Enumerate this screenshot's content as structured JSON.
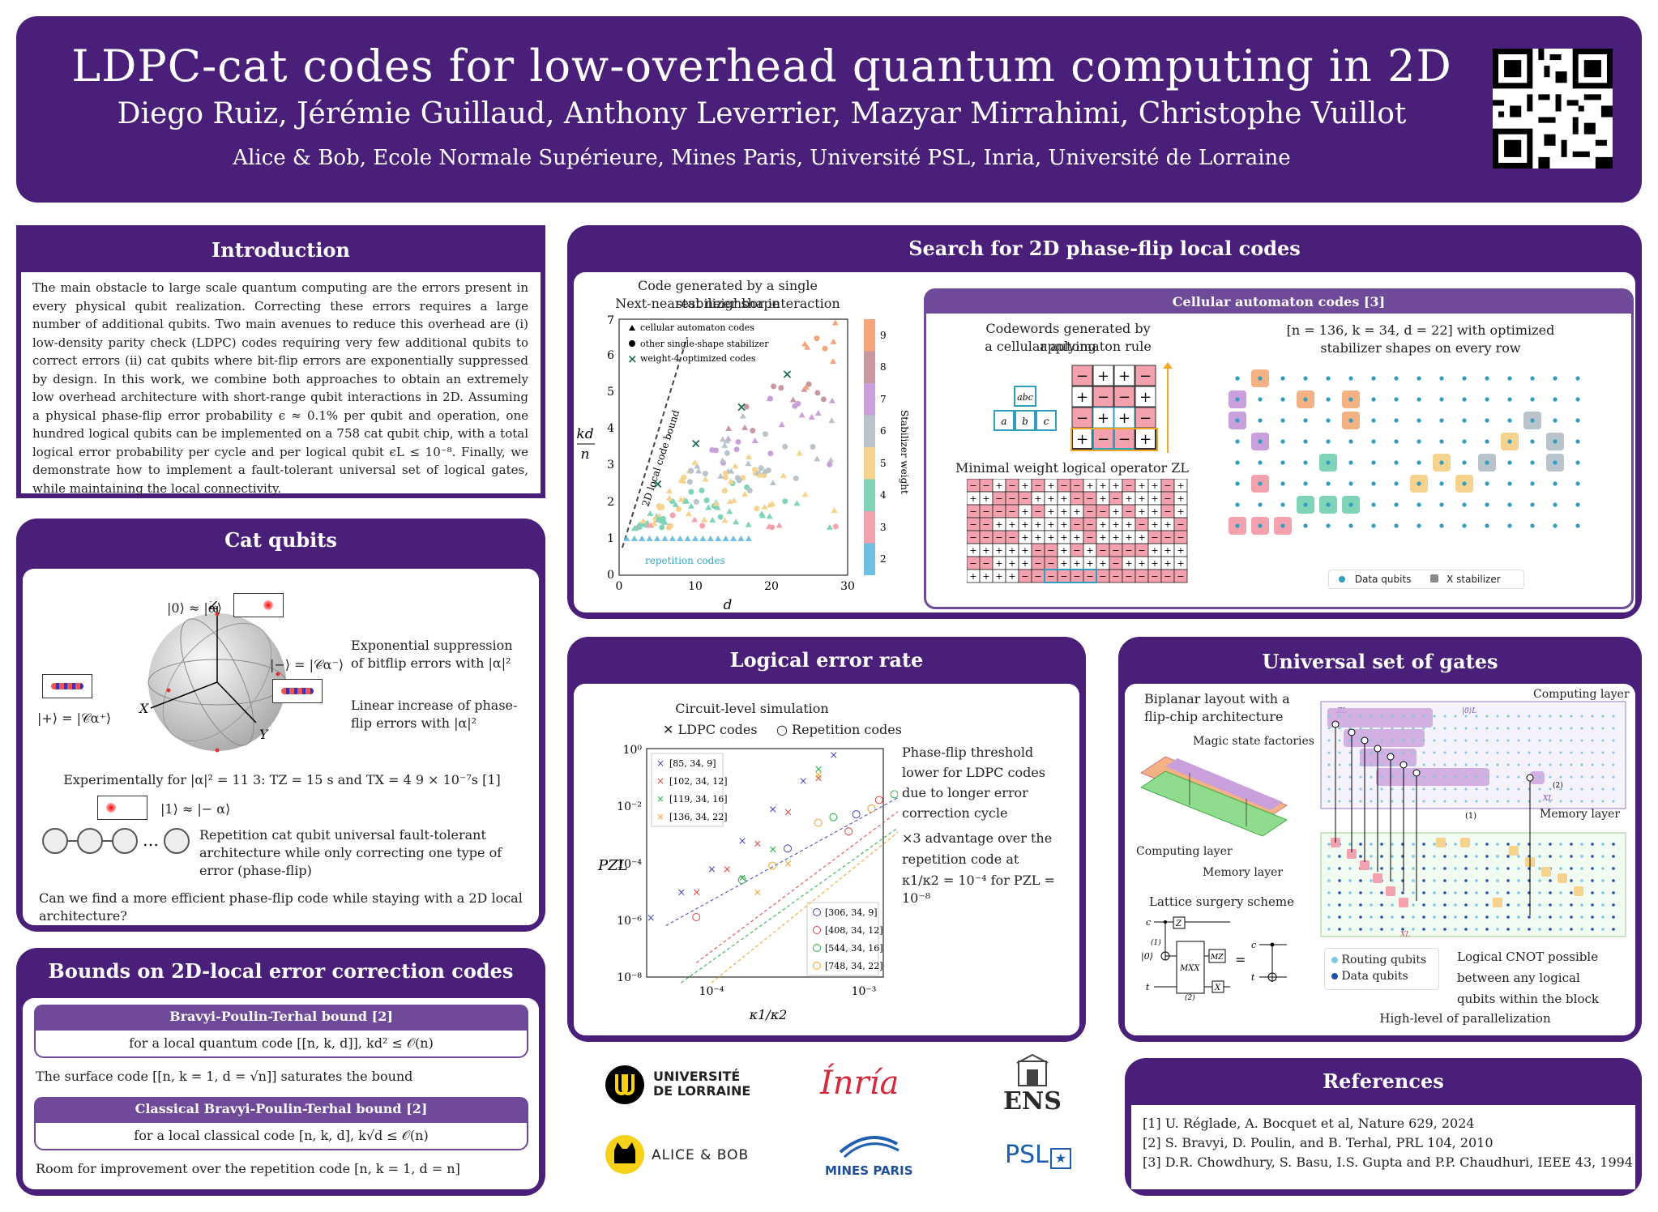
{
  "header": {
    "title_main": "LDPC-cat codes for low-overhead quantum computing in 2D",
    "authors": "Diego Ruiz, Jérémie Guillaud, Anthony Leverrier, Mazyar Mirrahimi, Christophe Vuillot",
    "affiliations": "Alice & Bob, Ecole Normale Supérieure, Mines Paris, Université PSL, Inria, Université de Lorraine"
  },
  "intro": {
    "title": "Introduction",
    "text": "The main obstacle to large scale quantum computing are the errors present in every physical qubit realization. Correcting these errors requires a large number of additional qubits. Two main avenues to reduce this overhead are (i) low-density parity check (LDPC) codes requiring very few additional qubits to correct errors (ii) cat qubits where bit-flip errors are exponentially suppressed by design. In this work, we combine both approaches to obtain an extremely low overhead architecture with short-range qubit interactions in 2D. Assuming a physical phase-flip error probability ϵ ≈ 0.1% per qubit and operation, one hundred logical qubits can be implemented on a 758 cat qubit chip, with a total logical error probability per cycle and per logical qubit ϵL ≤ 10⁻⁸. Finally, we demonstrate how to implement a fault-tolerant universal set of logical gates, while maintaining the local connectivity."
  },
  "cat": {
    "title": "Cat qubits",
    "ket0": "|0⟩ ≈ |α⟩",
    "ket1": "|1⟩ ≈ |− α⟩",
    "ketminus": "|−⟩ = |𝒞α⁻⟩",
    "ketplus": "|+⟩ = |𝒞α⁺⟩",
    "axis_z": "Z",
    "axis_x": "X",
    "axis_y": "Y",
    "exp_text": "Exponential suppression of bitflip errors with |α|²",
    "lin_text": "Linear increase of phase-flip errors with |α|²",
    "experiment": "Experimentally  for |α|² = 11 3:  TZ = 15 s and TX = 4 9 × 10⁻⁷s [1]",
    "rep_text": "Repetition cat qubit universal fault-tolerant architecture while only correcting one type of error (phase-flip)",
    "question": "Can we find a more efficient phase-flip code while staying with a 2D local architecture?"
  },
  "bounds": {
    "title": "Bounds on 2D-local error correction codes",
    "bpt_title": "Bravyi-Poulin-Terhal bound [2]",
    "bpt_text": "for a local quantum code [[n, k, d]], kd² ≤ 𝒪(n)",
    "surface": "The surface code [[n, k = 1, d = √n]] saturates the bound",
    "cbpt_title": "Classical Bravyi-Poulin-Terhal bound [2]",
    "cbpt_text": "for a local classical code [n, k, d], k√d ≤ 𝒪(n)",
    "room": "Room for improvement over the repetition code [n, k = 1, d = n]"
  },
  "search": {
    "title": "Search for 2D phase-flip local codes",
    "plot_title1": "Code generated by a single stabilizer shape",
    "plot_title2": "Next-nearest neighbor interaction",
    "ylabel_top": "kd",
    "ylabel_bot": "n",
    "xlabel": "d",
    "colorbar_label": "Stabilizer weight",
    "legend": [
      "cellular automaton codes",
      "other single-shape stabilizer",
      "weight-4 optimized codes"
    ],
    "bound_label": "2D local code bound",
    "rep_label": "repetition codes",
    "xticks": [
      "0",
      "10",
      "20",
      "30"
    ],
    "yticks": [
      "0",
      "1",
      "2",
      "3",
      "4",
      "5",
      "6",
      "7"
    ],
    "cbar_ticks": [
      "2",
      "3",
      "4",
      "5",
      "6",
      "7",
      "8",
      "9"
    ],
    "ca_title": "Cellular automaton codes [3]",
    "ca_sub1": "Codewords generated by applying",
    "ca_sub2": "a cellular automaton rule",
    "ca_cells": [
      "abc",
      "a",
      "b",
      "c"
    ],
    "ca_grid": [
      [
        "−",
        "+",
        "+",
        "−"
      ],
      [
        "+",
        "−",
        "−",
        "+"
      ],
      [
        "−",
        "+",
        "+",
        "−"
      ],
      [
        "+",
        "−",
        "−",
        "+"
      ]
    ],
    "min_weight": "Minimal weight logical operator ZL",
    "params1": "[n = 136, k = 34, d = 22] with optimized",
    "params2": "stabilizer shapes on every row",
    "legend_data": "Data qubits",
    "legend_x": "X stabilizer"
  },
  "error": {
    "title": "Logical error rate",
    "sim": "Circuit-level simulation",
    "legend_ldpc": "LDPC codes",
    "legend_rep": "Repetition codes",
    "ldpc_codes": [
      "[85, 34, 9]",
      "[102, 34, 12]",
      "[119, 34, 16]",
      "[136, 34, 22]"
    ],
    "rep_codes": [
      "[306, 34, 9]",
      "[408, 34, 12]",
      "[544, 34, 16]",
      "[748, 34, 22]"
    ],
    "yticks": [
      "10⁰",
      "10⁻²",
      "10⁻⁴",
      "10⁻⁶",
      "10⁻⁸"
    ],
    "xticks": [
      "10⁻⁴",
      "10⁻³"
    ],
    "ylabel": "PZL",
    "xlabel": "κ1/κ2",
    "thresh": "Phase-flip threshold lower for LDPC codes due to longer error correction cycle",
    "adv1": "×3 advantage over the",
    "adv2": "repetition code at",
    "adv3": "κ1/κ2 = 10⁻⁴ for PZL = 10⁻⁸"
  },
  "gates": {
    "title": "Universal set of gates",
    "biplanar": "Biplanar layout with a flip-chip architecture",
    "magic": "Magic state factories",
    "computing": "Computing layer",
    "memory": "Memory layer",
    "computing_layer": "Computing layer",
    "memory_layer": "Memory layer",
    "lattice": "Lattice surgery scheme",
    "routing": "Routing qubits",
    "data": "Data qubits",
    "cnot": "Logical CNOT possible between any logical qubits within the block",
    "parallel": "High-level of parallelization",
    "gate_z": "Z",
    "gate_mxx": "MXX",
    "gate_mz": "MZ",
    "gate_x": "X",
    "wire_c": "c",
    "wire_t": "t",
    "wire_zero": "|0⟩",
    "label_1": "(1)",
    "label_2": "(2)",
    "zl": "ZL",
    "ket0l": "|0⟩L",
    "xl": "XL"
  },
  "refs": {
    "title": "References",
    "items": [
      "[1] U. Réglade, A. Bocquet et al, Nature 629, 2024",
      "[2] S. Bravyi, D. Poulin, and B. Terhal, PRL 104, 2010",
      "[3] D.R. Chowdhury, S. Basu, I.S. Gupta and P.P. Chaudhuri, IEEE 43, 1994"
    ]
  },
  "logos": {
    "lorraine1": "UNIVERSITÉ",
    "lorraine2": "DE LORRAINE",
    "inria": "Ínría",
    "ens": "ENS",
    "alice": "ALICE & BOB",
    "mines": "MINES PARIS",
    "psl": "PSL"
  },
  "colors": {
    "purple": "#4a1f7a",
    "sub": "#6e4a98",
    "pink": "#f0a0a8",
    "green": "#7fd4b8",
    "orange": "#f4b183",
    "blue": "#2f9ec0"
  }
}
